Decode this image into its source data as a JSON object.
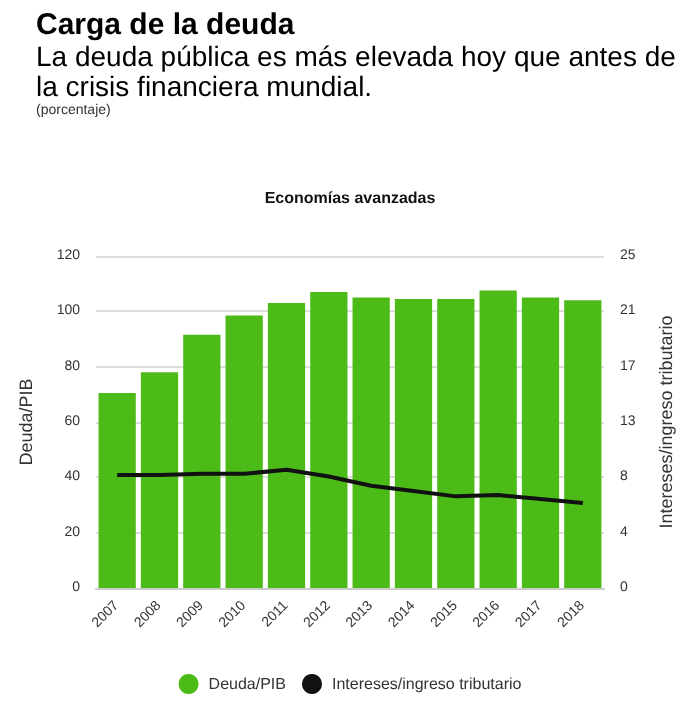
{
  "chart_data": {
    "type": "bar",
    "title": "Economías avanzadas",
    "annotations": [
      "Carga de la deuda",
      "La deuda pública es más elevada hoy que antes de la crisis financiera mundial.",
      "(porcentaje)"
    ],
    "ylabel": "Deuda/PIB",
    "y2label": "Intereses/ingreso tributario",
    "categories": [
      "2007",
      "2008",
      "2009",
      "2010",
      "2011",
      "2012",
      "2013",
      "2014",
      "2015",
      "2016",
      "2017",
      "2018"
    ],
    "series": [
      {
        "name": "Deuda/PIB",
        "color": "#4cbb17",
        "values": [
          70.5,
          78,
          91.5,
          98.5,
          103,
          107,
          105,
          104.5,
          104.5,
          107.5,
          105,
          104
        ]
      },
      {
        "name": "Intereses/ingreso tributario",
        "type": "line",
        "axis": "y2",
        "color": "#111111",
        "marker": "none",
        "values": [
          8.5,
          8.5,
          8.6,
          8.6,
          8.9,
          8.4,
          7.7,
          7.3,
          6.9,
          7.0,
          6.7,
          6.4
        ]
      }
    ],
    "ylim": [
      0,
      120
    ],
    "yticks": [
      0,
      20,
      40,
      60,
      80,
      100,
      120
    ],
    "y2lim": [
      0,
      25
    ],
    "y2ticks": [
      0,
      {
        "value": 4.1667,
        "label": "4"
      },
      {
        "value": 8.3333,
        "label": "8"
      },
      {
        "value": 12.5,
        "label": "13"
      },
      {
        "value": 16.6667,
        "label": "17"
      },
      {
        "value": 20.8333,
        "label": "21"
      },
      25
    ],
    "grid": "y",
    "legend": "bottom"
  }
}
